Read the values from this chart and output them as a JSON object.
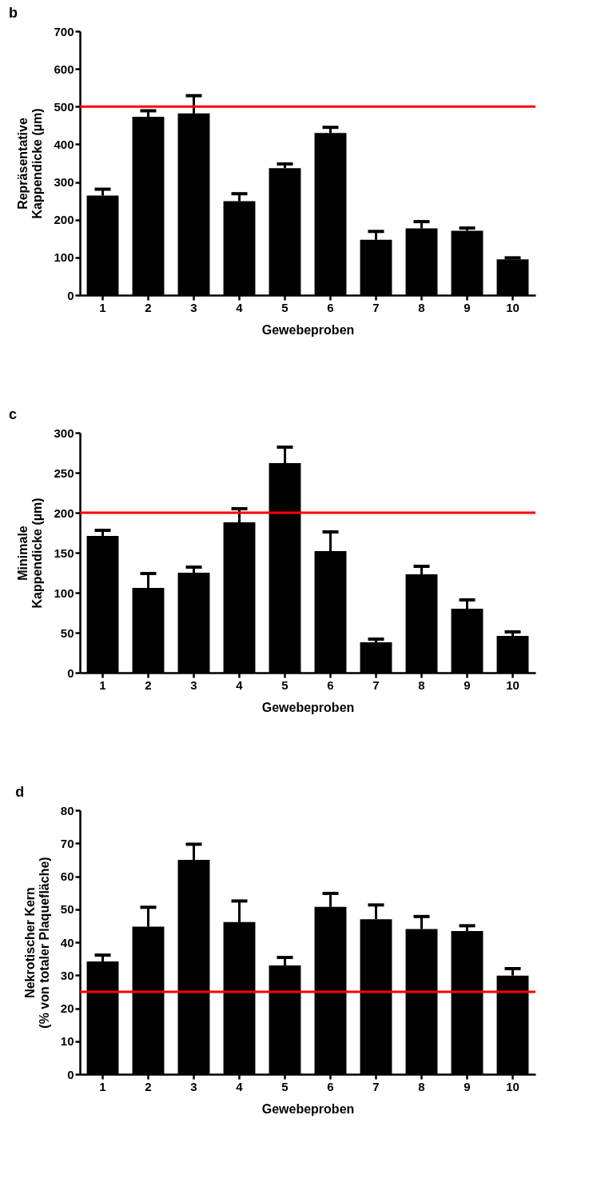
{
  "chart_data": [
    {
      "type": "bar",
      "title": "b",
      "xlabel": "Gewebeproben",
      "ylabel": "Repräsentative\nKappendicke (µm)",
      "categories": [
        "1",
        "2",
        "3",
        "4",
        "5",
        "6",
        "7",
        "8",
        "9",
        "10"
      ],
      "series": [
        {
          "color": "#000000",
          "values": [
            264,
            473,
            482,
            249,
            337,
            430,
            147,
            177,
            171,
            95
          ],
          "errors": [
            [
              264,
              281
            ],
            [
              473,
              489
            ],
            [
              482,
              529
            ],
            [
              249,
              269
            ],
            [
              337,
              348
            ],
            [
              430,
              445
            ],
            [
              147,
              169
            ],
            [
              177,
              195
            ],
            [
              171,
              178
            ],
            [
              95,
              99
            ]
          ]
        }
      ],
      "ylim": [
        0,
        700
      ],
      "yticks": [
        0,
        100,
        200,
        300,
        400,
        500,
        600,
        700
      ],
      "ref_lines": [
        {
          "axis": "y",
          "value": 500,
          "color": "#ff0000"
        }
      ]
    },
    {
      "type": "bar",
      "title": "c",
      "xlabel": "Gewebeproben",
      "ylabel": "Minimale\nKappendicke (µm)",
      "categories": [
        "1",
        "2",
        "3",
        "4",
        "5",
        "6",
        "7",
        "8",
        "9",
        "10"
      ],
      "series": [
        {
          "color": "#000000",
          "values": [
            171,
            106,
            125,
            188,
            262,
            152,
            38,
            123,
            80,
            46
          ],
          "errors": [
            [
              171,
              178
            ],
            [
              106,
              124
            ],
            [
              125,
              132
            ],
            [
              188,
              205
            ],
            [
              262,
              282
            ],
            [
              152,
              176
            ],
            [
              38,
              42
            ],
            [
              123,
              133
            ],
            [
              80,
              91
            ],
            [
              46,
              51
            ]
          ]
        }
      ],
      "ylim": [
        0,
        300
      ],
      "yticks": [
        0,
        50,
        100,
        150,
        200,
        250,
        300
      ],
      "ref_lines": [
        {
          "axis": "y",
          "value": 200,
          "color": "#ff0000"
        }
      ]
    },
    {
      "type": "bar",
      "title": "d",
      "xlabel": "Gewebeproben",
      "ylabel": "Nekrotischer Kern\n(% von totaler Plaquefläche)",
      "categories": [
        "1",
        "2",
        "3",
        "4",
        "5",
        "6",
        "7",
        "8",
        "9",
        "10"
      ],
      "series": [
        {
          "color": "#000000",
          "values": [
            34.2,
            44.7,
            65,
            46.1,
            33,
            50.7,
            47,
            44,
            43.4,
            29.9
          ],
          "errors": [
            [
              34.2,
              36.1
            ],
            [
              44.7,
              50.6
            ],
            [
              65,
              69.7
            ],
            [
              46.1,
              52.5
            ],
            [
              33,
              35.4
            ],
            [
              50.7,
              54.8
            ],
            [
              47,
              51.3
            ],
            [
              44,
              47.8
            ],
            [
              43.4,
              45
            ],
            [
              29.9,
              32
            ]
          ]
        }
      ],
      "ylim": [
        0,
        80
      ],
      "yticks": [
        0,
        10,
        20,
        30,
        40,
        50,
        60,
        70,
        80
      ],
      "ref_lines": [
        {
          "axis": "y",
          "value": 25,
          "color": "#ff0000"
        }
      ]
    }
  ]
}
